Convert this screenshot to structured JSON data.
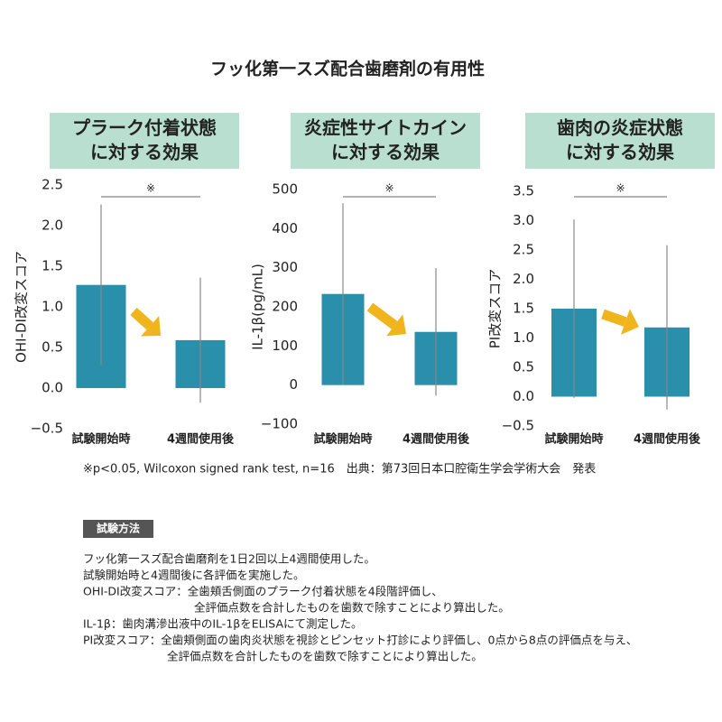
{
  "title": "フッ化第一スズ配合歯磨剤の有用性",
  "chart_data": [
    {
      "type": "bar",
      "title": [
        "プラーク付着状態",
        "に対する効果"
      ],
      "y_label": "OHI-DI改変スコア",
      "categories": [
        "試験開始時",
        "4週間使用後"
      ],
      "values": [
        1.27,
        0.59
      ],
      "errors": [
        0.99,
        0.77
      ],
      "color": "#2a8fab",
      "ylim": [
        -0.5,
        2.5
      ],
      "yticks": [
        2.5,
        {
          "value": 2,
          "label": "2.0"
        },
        1.5,
        {
          "value": 1,
          "label": "1.0"
        },
        0.5,
        {
          "value": 0,
          "label": "0.0"
        },
        {
          "value": -0.5,
          "label": "−0.5"
        }
      ],
      "significance": "※"
    },
    {
      "type": "bar",
      "title": [
        "炎症性サイトカイン",
        "に対する効果"
      ],
      "y_label": "IL-1β(pg/mL)",
      "categories": [
        "試験開始時",
        "4週間使用後"
      ],
      "values": [
        233,
        136
      ],
      "errors": [
        232,
        163
      ],
      "color": "#2a8fab",
      "ylim": [
        -100,
        500
      ],
      "yticks": [
        500,
        400,
        300,
        200,
        100,
        0,
        {
          "value": -100,
          "label": "−100"
        }
      ],
      "significance": "※"
    },
    {
      "type": "bar",
      "title": [
        "歯肉の炎症状態",
        "に対する効果"
      ],
      "y_label": "PI改変スコア",
      "categories": [
        "試験開始時",
        "4週間使用後"
      ],
      "values": [
        1.5,
        1.18
      ],
      "errors": [
        1.52,
        1.4
      ],
      "color": "#2a8fab",
      "ylim": [
        -0.5,
        3.5
      ],
      "yticks": [
        3.5,
        {
          "value": 3,
          "label": "3.0"
        },
        2.5,
        {
          "value": 2,
          "label": "2.0"
        },
        1.5,
        {
          "value": 1,
          "label": "1.0"
        },
        0.5,
        {
          "value": 0,
          "label": "0.0"
        },
        {
          "value": -0.5,
          "label": "−0.5"
        }
      ],
      "significance": "※"
    }
  ],
  "footnote": "※p<0.05, Wilcoxon signed rank test, n=16　出典：第73回日本口腔衛生学会学術大会　発表",
  "method": {
    "heading": "試験方法",
    "lines": [
      "フッ化第一スズ配合歯磨剤を1日2回以上4週間使用した。",
      "試験開始時と4週間後に各評価を実施した。",
      "OHI-DI改変スコア：全歯頬舌側面のプラーク付着状態を4段階評価し、",
      "全評価点数を合計したものを歯数で除すことにより算出した。",
      "IL-1β：歯肉溝滲出液中のIL-1βをELISAにて測定した。",
      "PI改変スコア：全歯頬側面の歯肉炎状態を視診とピンセット打診により評価し、0点から8点の評価点を与え、",
      "全評価点数を合計したものを歯数で除すことにより算出した。"
    ]
  }
}
